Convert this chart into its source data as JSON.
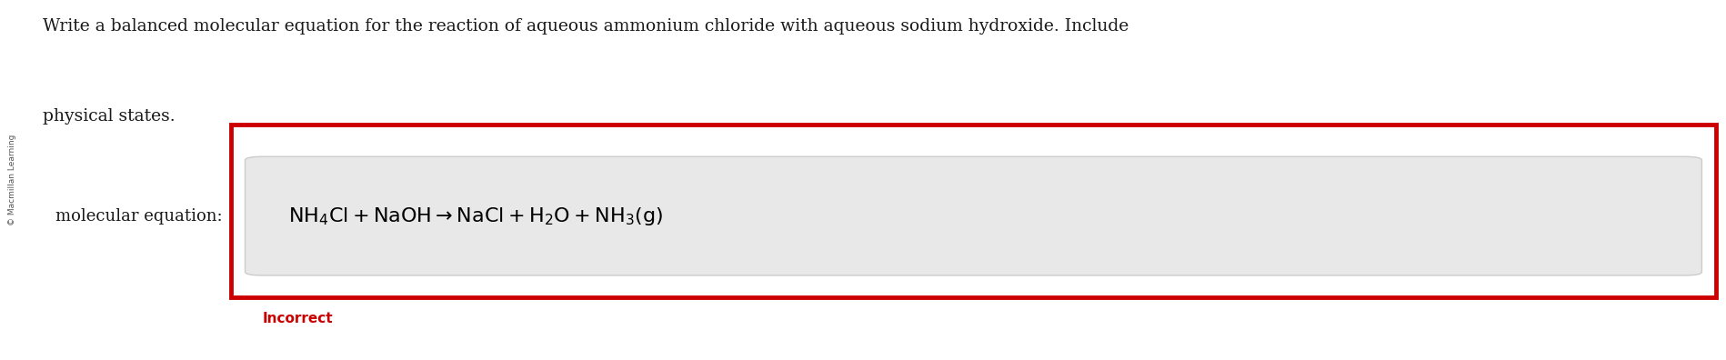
{
  "bg_color": "#ffffff",
  "question_text_line1": "Write a balanced molecular equation for the reaction of aqueous ammonium chloride with aqueous sodium hydroxide. Include",
  "question_text_line2": "physical states.",
  "label_text": "molecular equation:",
  "equation": "$\\mathrm{NH_4Cl + NaOH \\rightarrow NaCl + H_2O + NH_3(g)}$",
  "incorrect_text": "Incorrect",
  "incorrect_color": "#cc0000",
  "outer_box_color": "#cc0000",
  "inner_box_color": "#e8e8e8",
  "inner_box_border_color": "#cccccc",
  "sidebar_text": "© Macmillan Learning",
  "question_fontsize": 13.5,
  "label_fontsize": 13,
  "equation_fontsize": 16,
  "incorrect_fontsize": 11
}
